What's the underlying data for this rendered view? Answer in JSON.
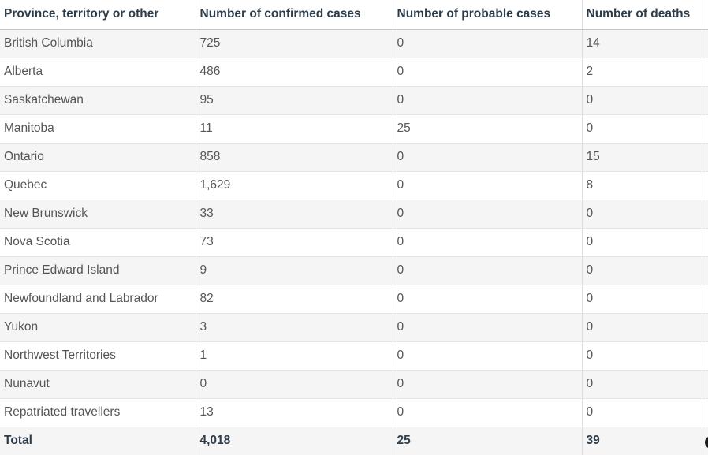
{
  "table": {
    "columns": [
      "Province, territory or other",
      "Number of confirmed cases",
      "Number of probable cases",
      "Number of deaths",
      ""
    ],
    "rows": [
      [
        "British Columbia",
        "725",
        "0",
        "14",
        ""
      ],
      [
        "Alberta",
        "486",
        "0",
        "2",
        ""
      ],
      [
        "Saskatchewan",
        "95",
        "0",
        "0",
        ""
      ],
      [
        "Manitoba",
        "11",
        "25",
        "0",
        ""
      ],
      [
        "Ontario",
        "858",
        "0",
        "15",
        ""
      ],
      [
        "Quebec",
        "1,629",
        "0",
        "8",
        ""
      ],
      [
        "New Brunswick",
        "33",
        "0",
        "0",
        ""
      ],
      [
        "Nova Scotia",
        "73",
        "0",
        "0",
        ""
      ],
      [
        "Prince Edward Island",
        "9",
        "0",
        "0",
        ""
      ],
      [
        "Newfoundland and Labrador",
        "82",
        "0",
        "0",
        ""
      ],
      [
        "Yukon",
        "3",
        "0",
        "0",
        ""
      ],
      [
        "Northwest Territories",
        "1",
        "0",
        "0",
        ""
      ],
      [
        "Nunavut",
        "0",
        "0",
        "0",
        ""
      ],
      [
        "Repatriated travellers",
        "13",
        "0",
        "0",
        ""
      ]
    ],
    "total": [
      "Total",
      "4,018",
      "25",
      "39",
      ""
    ]
  },
  "colors": {
    "header_text": "#2e3d49",
    "body_text": "#555555",
    "stripe_bg": "#f5f5f5",
    "border": "#dcdcdc",
    "floating_button": "#1c1c1c"
  }
}
